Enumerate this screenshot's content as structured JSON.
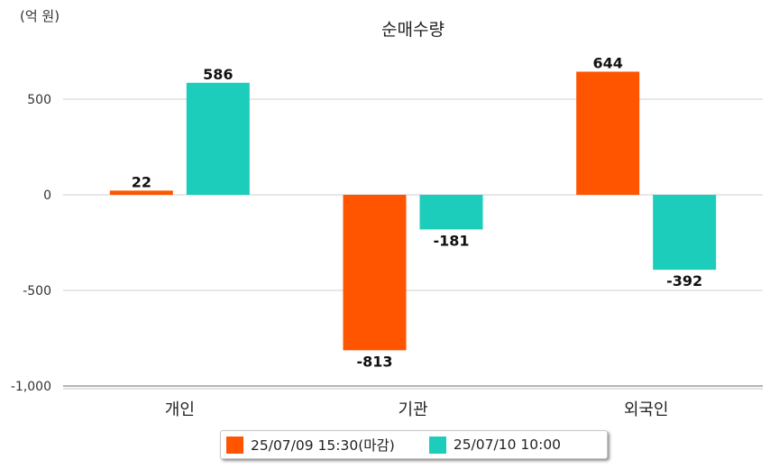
{
  "chart_data": {
    "type": "bar",
    "title": "순매수량",
    "unit_label": "(억 원)",
    "categories": [
      "개인",
      "기관",
      "외국인"
    ],
    "series": [
      {
        "name": "25/07/09 15:30(마감)",
        "color": "#ff5500",
        "values": [
          22,
          -813,
          644
        ]
      },
      {
        "name": "25/07/10 10:00",
        "color": "#1ccdbc",
        "values": [
          586,
          -181,
          -392
        ]
      }
    ],
    "ylim": [
      -1000,
      700
    ],
    "yticks": [
      500,
      0,
      -500,
      -1000
    ],
    "ytick_labels": [
      "500",
      "0",
      "-500",
      "-1,000"
    ],
    "grid": true,
    "legend_position": "bottom"
  }
}
